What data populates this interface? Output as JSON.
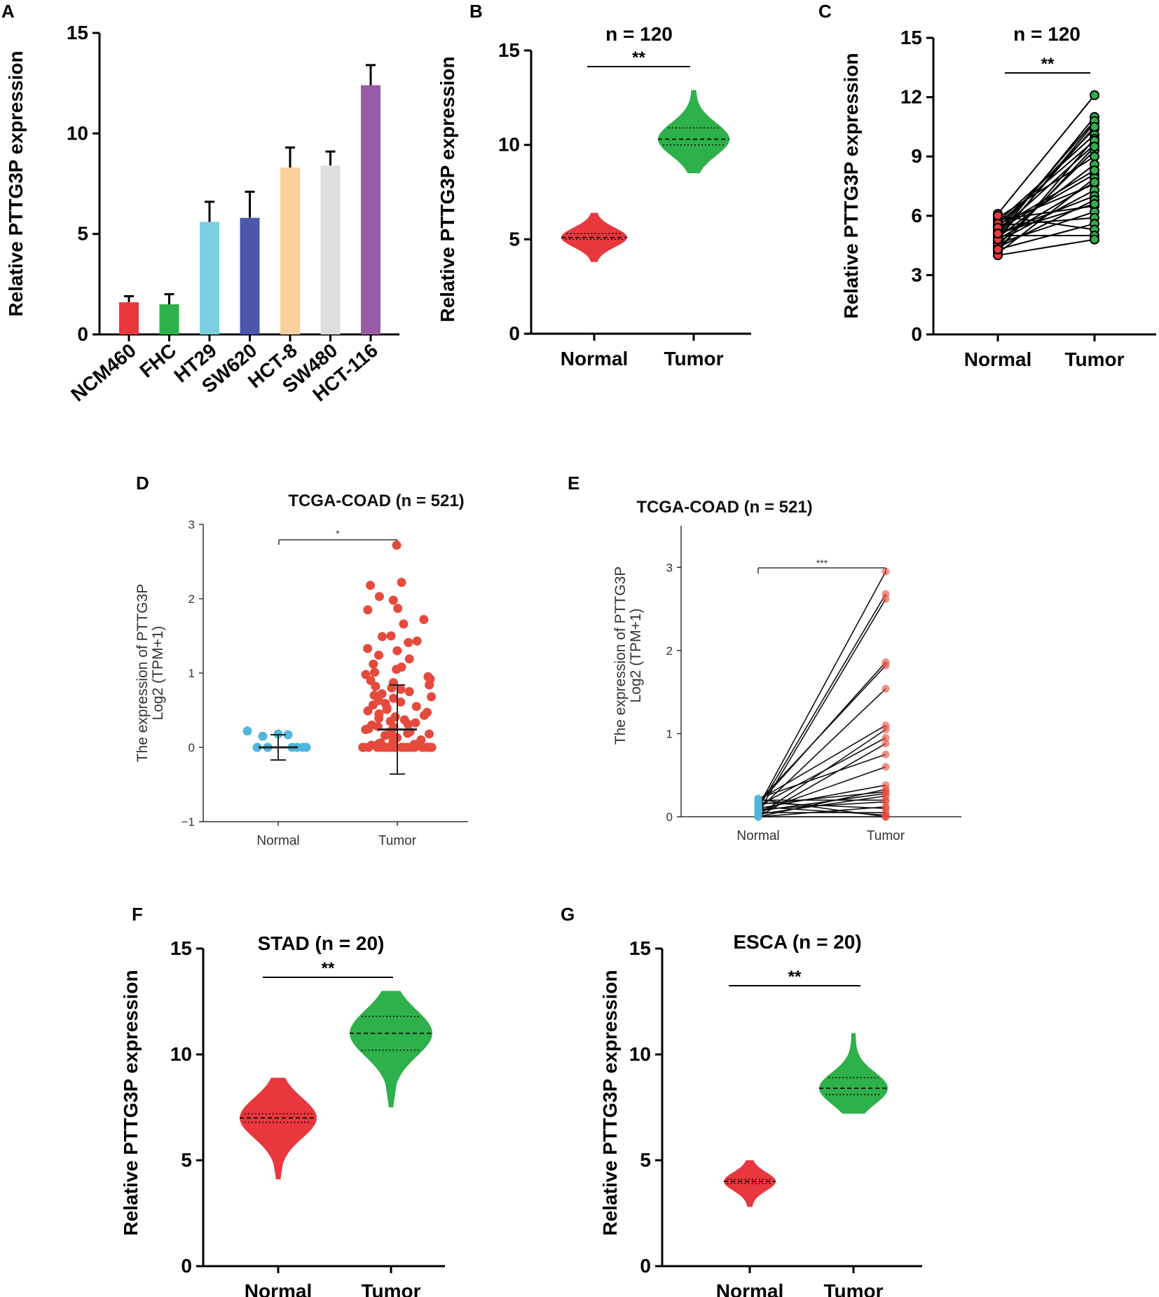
{
  "figure": {
    "panel_labels": [
      "A",
      "B",
      "C",
      "D",
      "E",
      "F",
      "G"
    ]
  },
  "chart_data": [
    {
      "id": "A",
      "type": "bar",
      "title": "",
      "ylabel": "Relative PTTG3P expression",
      "ylim": [
        0,
        15
      ],
      "yticks": [
        "0",
        "5",
        "10",
        "15"
      ],
      "categories": [
        "NCM460",
        "FHC",
        "HT29",
        "SW620",
        "HCT-8",
        "SW480",
        "HCT-116"
      ],
      "values": [
        1.6,
        1.5,
        5.6,
        5.8,
        8.3,
        8.4,
        12.4
      ],
      "errors": [
        0.3,
        0.5,
        1.0,
        1.3,
        1.0,
        0.7,
        1.0
      ],
      "colors": [
        "#e8383d",
        "#2eb04a",
        "#7dcfe0",
        "#4b57a8",
        "#fcd09c",
        "#dedede",
        "#9b5aa5"
      ]
    },
    {
      "id": "B",
      "type": "violin",
      "title": "n = 120",
      "ylabel": "Relative PTTG3P expression",
      "ylim": [
        0,
        15
      ],
      "yticks": [
        "0",
        "5",
        "10",
        "15"
      ],
      "categories": [
        "Normal",
        "Tumor"
      ],
      "significance": "**",
      "groups": [
        {
          "name": "Normal",
          "color": "#e8383d",
          "min": 3.8,
          "max": 6.4,
          "median": 5.1,
          "q1": 5.0,
          "q3": 5.3
        },
        {
          "name": "Tumor",
          "color": "#2eb04a",
          "min": 8.5,
          "max": 12.9,
          "median": 10.3,
          "q1": 10.0,
          "q3": 10.9
        }
      ]
    },
    {
      "id": "C",
      "type": "paired",
      "title": "n = 120",
      "ylabel": "Relative PTTG3P expression",
      "ylim": [
        0,
        15
      ],
      "yticks": [
        "0",
        "3",
        "6",
        "9",
        "12",
        "15"
      ],
      "categories": [
        "Normal",
        "Tumor"
      ],
      "significance": "**",
      "colors": [
        "#e8383d",
        "#2eb04a"
      ],
      "pairs": [
        [
          6.1,
          12.1
        ],
        [
          5.0,
          11.0
        ],
        [
          4.8,
          10.7
        ],
        [
          5.4,
          10.4
        ],
        [
          5.7,
          10.1
        ],
        [
          4.2,
          9.9
        ],
        [
          5.2,
          9.6
        ],
        [
          4.5,
          9.3
        ],
        [
          5.9,
          9.0
        ],
        [
          4.9,
          8.6
        ],
        [
          5.3,
          8.1
        ],
        [
          4.1,
          7.9
        ],
        [
          5.6,
          7.6
        ],
        [
          4.7,
          7.3
        ],
        [
          5.1,
          7.0
        ],
        [
          4.4,
          6.8
        ],
        [
          5.8,
          6.5
        ],
        [
          4.6,
          6.2
        ],
        [
          5.5,
          5.9
        ],
        [
          4.3,
          5.6
        ],
        [
          6.0,
          5.3
        ],
        [
          5.0,
          5.0
        ],
        [
          4.0,
          4.8
        ],
        [
          5.2,
          10.8
        ],
        [
          4.9,
          10.5
        ],
        [
          5.6,
          9.8
        ],
        [
          4.3,
          9.5
        ],
        [
          5.4,
          8.3
        ],
        [
          4.8,
          7.7
        ],
        [
          5.1,
          6.6
        ]
      ]
    },
    {
      "id": "D",
      "type": "scatter",
      "title": "TCGA-COAD (n = 521)",
      "ylabel_line1": "The expression of PTTG3P",
      "ylabel_line2": "Log2 (TPM+1)",
      "ylim": [
        -1,
        3
      ],
      "yticks": [
        "−1",
        "0",
        "1",
        "2",
        "3"
      ],
      "categories": [
        "Normal",
        "Tumor"
      ],
      "significance": "*",
      "colors": [
        "#4fb7db",
        "#e54a3c"
      ],
      "normal": {
        "mean": 0.0,
        "sd": 0.17,
        "points": [
          0.22,
          0.0,
          0.0,
          0.18,
          0.17,
          0.0,
          0.0,
          0.15,
          0.0,
          0.0
        ]
      },
      "tumor": {
        "mean": 0.24,
        "sd": 0.6,
        "points": [
          2.72,
          2.22,
          2.18,
          2.03,
          1.98,
          1.87,
          1.85,
          1.72,
          1.66,
          1.5,
          1.49,
          1.43,
          1.41,
          1.33,
          1.3,
          1.24,
          1.19,
          1.12,
          1.08,
          1.05,
          1.01,
          0.98,
          0.95,
          0.92,
          0.9,
          0.87,
          0.84,
          0.82,
          0.8,
          0.78,
          0.75,
          0.72,
          0.7,
          0.68,
          0.66,
          0.63,
          0.61,
          0.59,
          0.57,
          0.55,
          0.53,
          0.51,
          0.49,
          0.47,
          0.45,
          0.43,
          0.41,
          0.39,
          0.37,
          0.35,
          0.33,
          0.31,
          0.3,
          0.28,
          0.27,
          0.25,
          0.24,
          0.22,
          0.21,
          0.19,
          0.18,
          0.16,
          0.15,
          0.13,
          0.12,
          0.1,
          0.09,
          0.07,
          0.06,
          0.05,
          0.04,
          0.03,
          0.02,
          0.01,
          0.0,
          0.0,
          0.0,
          0.0,
          0.0,
          0.0,
          0.0,
          0.0,
          0.0,
          0.0,
          0.0,
          0.0,
          0.0,
          0.0,
          0.0,
          0.0,
          0.0,
          0.0,
          0.0,
          0.0,
          0.0,
          0.0,
          0.0,
          0.0,
          0.0,
          0.0
        ]
      }
    },
    {
      "id": "E",
      "type": "paired",
      "title": "TCGA-COAD (n = 521)",
      "ylabel_line1": "The expression of PTTG3P",
      "ylabel_line2": "Log2 (TPM+1)",
      "ylim": [
        0,
        3.5
      ],
      "yticks": [
        "0",
        "1",
        "2",
        "3"
      ],
      "categories": [
        "Normal",
        "Tumor"
      ],
      "significance": "***",
      "colors": [
        "#4fb7db",
        "#e54a3c"
      ],
      "pairs": [
        [
          0.12,
          2.95
        ],
        [
          0.1,
          2.68
        ],
        [
          0.05,
          2.62
        ],
        [
          0.15,
          1.86
        ],
        [
          0.18,
          1.82
        ],
        [
          0.08,
          1.54
        ],
        [
          0.2,
          1.1
        ],
        [
          0.02,
          1.05
        ],
        [
          0.13,
          0.95
        ],
        [
          0.0,
          0.88
        ],
        [
          0.22,
          0.75
        ],
        [
          0.06,
          0.6
        ],
        [
          0.1,
          0.38
        ],
        [
          0.0,
          0.33
        ],
        [
          0.15,
          0.3
        ],
        [
          0.03,
          0.25
        ],
        [
          0.2,
          0.2
        ],
        [
          0.09,
          0.18
        ],
        [
          0.0,
          0.12
        ],
        [
          0.17,
          0.1
        ],
        [
          0.05,
          0.05
        ],
        [
          0.12,
          0.02
        ],
        [
          0.0,
          0.0
        ],
        [
          0.21,
          0.0
        ],
        [
          0.07,
          0.28
        ]
      ]
    },
    {
      "id": "F",
      "type": "violin",
      "title": "STAD (n = 20)",
      "ylabel": "Relative PTTG3P expression",
      "ylim": [
        0,
        15
      ],
      "yticks": [
        "0",
        "5",
        "10",
        "15"
      ],
      "categories": [
        "Normal",
        "Tumor"
      ],
      "significance": "**",
      "groups": [
        {
          "name": "Normal",
          "color": "#e8383d",
          "min": 4.1,
          "max": 8.9,
          "median": 7.0,
          "q1": 6.8,
          "q3": 7.2
        },
        {
          "name": "Tumor",
          "color": "#2eb04a",
          "min": 7.5,
          "max": 13.0,
          "median": 11.0,
          "q1": 10.2,
          "q3": 11.8
        }
      ]
    },
    {
      "id": "G",
      "type": "violin",
      "title": "ESCA (n = 20)",
      "ylabel": "Relative PTTG3P expression",
      "ylim": [
        0,
        15
      ],
      "yticks": [
        "0",
        "5",
        "10",
        "15"
      ],
      "categories": [
        "Normal",
        "Tumor"
      ],
      "significance": "**",
      "groups": [
        {
          "name": "Normal",
          "color": "#e8383d",
          "min": 2.8,
          "max": 5.0,
          "median": 4.0,
          "q1": 3.9,
          "q3": 4.1
        },
        {
          "name": "Tumor",
          "color": "#2eb04a",
          "min": 7.2,
          "max": 11.0,
          "median": 8.4,
          "q1": 8.1,
          "q3": 8.9
        }
      ]
    }
  ]
}
